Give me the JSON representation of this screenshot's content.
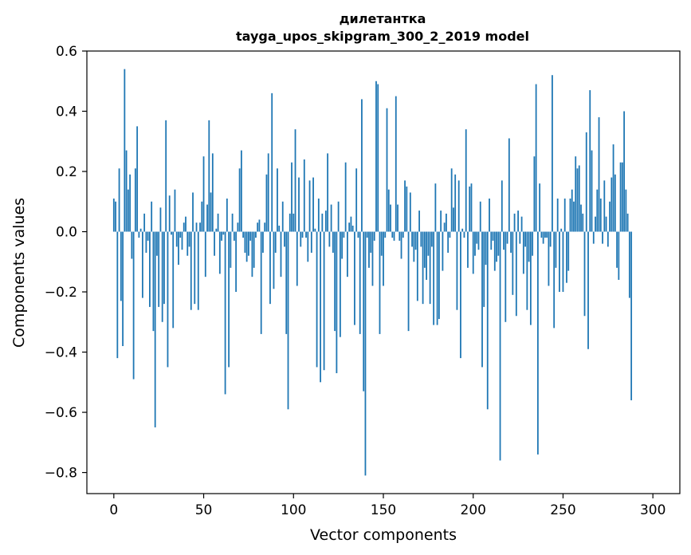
{
  "chart_data": {
    "type": "bar",
    "title": "дилетантка",
    "subtitle": "tayga_upos_skipgram_300_2_2019 model",
    "xlabel": "Vector components",
    "ylabel": "Components values",
    "xlim": [
      -15,
      315
    ],
    "ylim": [
      -0.87,
      0.6
    ],
    "xticks": [
      0,
      50,
      100,
      150,
      200,
      250,
      300
    ],
    "yticks": [
      -0.8,
      -0.6,
      -0.4,
      -0.2,
      0.0,
      0.2,
      0.4,
      0.6
    ],
    "ytick_labels": [
      "−0.8",
      "−0.6",
      "−0.4",
      "−0.2",
      "0.0",
      "0.2",
      "0.4",
      "0.6"
    ],
    "grid": false,
    "bar_color": "#1f77b4",
    "values": [
      0.11,
      0.1,
      -0.42,
      0.21,
      -0.23,
      -0.38,
      0.54,
      0.27,
      0.14,
      0.19,
      -0.09,
      -0.49,
      0.21,
      0.35,
      -0.02,
      0.01,
      -0.22,
      0.06,
      -0.07,
      -0.03,
      -0.25,
      0.1,
      -0.33,
      -0.65,
      -0.08,
      -0.25,
      0.08,
      -0.3,
      -0.24,
      0.37,
      -0.45,
      0.12,
      -0.01,
      -0.32,
      0.14,
      -0.05,
      -0.11,
      -0.02,
      -0.06,
      0.03,
      0.05,
      -0.08,
      -0.05,
      -0.26,
      0.13,
      -0.24,
      0.03,
      -0.26,
      0.03,
      0.1,
      0.25,
      -0.15,
      0.09,
      0.37,
      0.13,
      0.26,
      -0.08,
      0.01,
      0.06,
      -0.14,
      -0.03,
      -0.01,
      -0.54,
      0.11,
      -0.45,
      -0.12,
      0.06,
      -0.03,
      -0.2,
      0.03,
      0.21,
      0.27,
      -0.02,
      -0.07,
      -0.1,
      -0.08,
      -0.03,
      -0.15,
      -0.12,
      -0.02,
      0.03,
      0.04,
      -0.34,
      -0.07,
      0.03,
      0.19,
      0.26,
      -0.24,
      0.46,
      -0.19,
      -0.07,
      0.21,
      0.02,
      -0.15,
      0.1,
      -0.05,
      -0.34,
      -0.59,
      0.06,
      0.23,
      0.06,
      0.34,
      -0.18,
      0.18,
      -0.05,
      -0.02,
      0.24,
      -0.02,
      -0.1,
      0.17,
      -0.07,
      0.18,
      0.01,
      -0.45,
      0.11,
      -0.5,
      0.06,
      -0.46,
      0.07,
      0.26,
      -0.05,
      0.09,
      -0.07,
      -0.33,
      -0.47,
      0.1,
      -0.35,
      -0.09,
      -0.02,
      0.23,
      -0.15,
      0.03,
      0.05,
      0.02,
      -0.31,
      0.21,
      -0.02,
      -0.34,
      0.44,
      -0.53,
      -0.81,
      -0.02,
      -0.12,
      -0.07,
      -0.18,
      -0.03,
      0.5,
      0.49,
      -0.34,
      -0.08,
      -0.18,
      -0.02,
      0.41,
      0.14,
      0.09,
      -0.02,
      -0.03,
      0.45,
      0.09,
      -0.03,
      -0.09,
      -0.02,
      0.17,
      0.15,
      -0.33,
      0.13,
      -0.05,
      -0.1,
      -0.06,
      -0.23,
      0.07,
      -0.05,
      -0.24,
      -0.12,
      -0.16,
      -0.08,
      -0.24,
      -0.05,
      -0.31,
      0.16,
      -0.31,
      -0.29,
      0.07,
      -0.13,
      0.03,
      0.06,
      -0.07,
      -0.02,
      0.21,
      0.08,
      0.19,
      -0.26,
      0.17,
      -0.42,
      0.01,
      -0.02,
      0.34,
      -0.12,
      0.15,
      0.16,
      -0.14,
      -0.08,
      -0.04,
      -0.06,
      0.1,
      -0.45,
      -0.25,
      -0.11,
      -0.59,
      0.11,
      -0.06,
      -0.03,
      -0.13,
      -0.1,
      -0.08,
      -0.76,
      0.17,
      -0.06,
      -0.3,
      -0.04,
      0.31,
      -0.07,
      -0.21,
      0.06,
      -0.28,
      0.07,
      -0.04,
      0.05,
      -0.14,
      -0.05,
      -0.26,
      -0.1,
      -0.31,
      -0.08,
      0.25,
      0.49,
      -0.74,
      0.16,
      -0.02,
      -0.04,
      -0.02,
      -0.02,
      -0.18,
      -0.05,
      0.52,
      -0.32,
      -0.12,
      0.11,
      -0.2,
      0.01,
      -0.2,
      0.11,
      -0.17,
      -0.13,
      0.11,
      0.14,
      0.1,
      0.25,
      0.21,
      0.22,
      0.09,
      0.06,
      -0.28,
      0.33,
      -0.39,
      0.47,
      0.27,
      -0.04,
      0.05,
      0.14,
      0.38,
      0.11,
      -0.04,
      0.17,
      0.05,
      -0.05,
      0.1,
      0.18,
      0.29,
      0.19,
      -0.12,
      -0.16,
      0.23,
      0.23,
      0.4,
      0.14,
      0.06,
      -0.22,
      -0.56
    ]
  }
}
